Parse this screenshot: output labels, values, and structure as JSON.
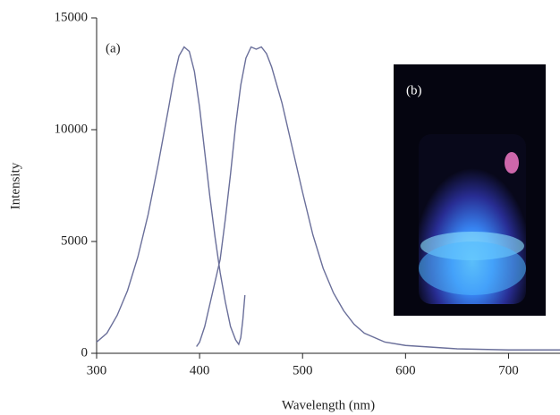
{
  "chart_data": {
    "type": "line",
    "x_label": "Wavelength (nm)",
    "y_label": "Intensity",
    "annotations": [
      "(a)",
      "(b)"
    ],
    "xlim": [
      300,
      750
    ],
    "xticks": [
      300,
      400,
      500,
      600,
      700
    ],
    "ylim": [
      0,
      15000
    ],
    "yticks": [
      0,
      5000,
      10000,
      15000
    ],
    "series": [
      {
        "color": "#6a6f9a",
        "x": [
          300,
          310,
          320,
          330,
          340,
          350,
          360,
          370,
          375,
          380,
          385,
          390,
          395,
          400,
          405,
          410,
          415,
          420,
          425,
          430,
          435,
          438,
          440,
          442,
          444
        ],
        "values": [
          500,
          900,
          1700,
          2800,
          4300,
          6200,
          8500,
          11000,
          12300,
          13300,
          13700,
          13500,
          12600,
          11000,
          9000,
          7000,
          5200,
          3600,
          2300,
          1200,
          600,
          400,
          700,
          1500,
          2600
        ]
      },
      {
        "color": "#6a6f9a",
        "x": [
          397,
          400,
          405,
          410,
          415,
          420,
          425,
          430,
          435,
          440,
          445,
          450,
          455,
          460,
          465,
          470,
          480,
          490,
          500,
          510,
          520,
          530,
          540,
          550,
          560,
          580,
          600,
          650,
          700,
          750
        ],
        "values": [
          300,
          500,
          1200,
          2200,
          3200,
          4200,
          6000,
          8000,
          10200,
          12000,
          13200,
          13700,
          13600,
          13700,
          13400,
          12800,
          11200,
          9200,
          7200,
          5300,
          3800,
          2700,
          1900,
          1300,
          900,
          500,
          350,
          200,
          150,
          150
        ]
      }
    ]
  }
}
